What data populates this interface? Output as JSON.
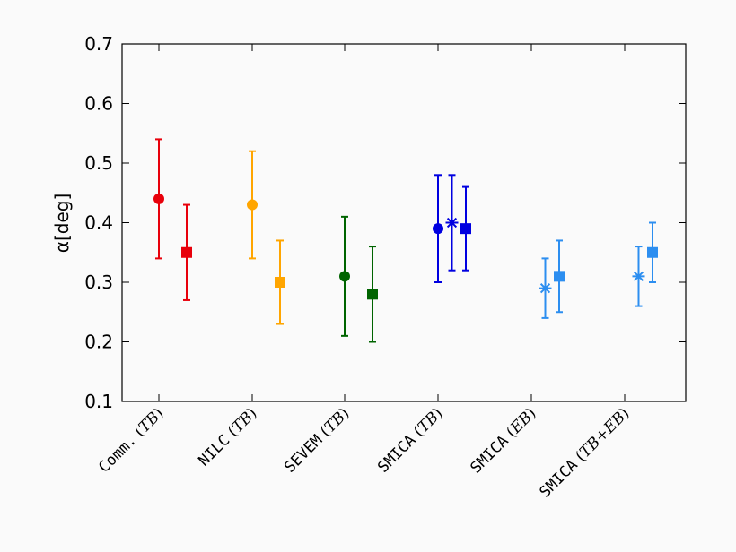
{
  "chart_data": {
    "type": "scatter",
    "ylabel": "α[deg]",
    "ylim": [
      0.1,
      0.7
    ],
    "yticks": [
      "0.1",
      "0.2",
      "0.3",
      "0.4",
      "0.5",
      "0.6",
      "0.7"
    ],
    "categories": [
      {
        "mono": "Comm.",
        "open": " (",
        "ital": "TB",
        "close": ")"
      },
      {
        "mono": "NILC",
        "open": " (",
        "ital": "TB",
        "close": ")"
      },
      {
        "mono": "SEVEM",
        "open": " (",
        "ital": "TB",
        "close": ")"
      },
      {
        "mono": "SMICA",
        "open": " (",
        "ital": "TB",
        "close": ")"
      },
      {
        "mono": "SMICA",
        "open": " (",
        "ital": "EB",
        "close": ")"
      },
      {
        "mono": "SMICA",
        "open": " (",
        "ital": "TB+EB",
        "close": ")"
      }
    ],
    "grid": false,
    "points": [
      {
        "category": 0,
        "offset": 0,
        "marker": "circle",
        "color": "#e8000b",
        "value": 0.44,
        "low": 0.34,
        "high": 0.54
      },
      {
        "category": 0,
        "offset": 1,
        "marker": "square",
        "color": "#e8000b",
        "value": 0.35,
        "low": 0.27,
        "high": 0.43
      },
      {
        "category": 1,
        "offset": 0,
        "marker": "circle",
        "color": "#ffa500",
        "value": 0.43,
        "low": 0.34,
        "high": 0.52
      },
      {
        "category": 1,
        "offset": 1,
        "marker": "square",
        "color": "#ffa500",
        "value": 0.3,
        "low": 0.23,
        "high": 0.37
      },
      {
        "category": 2,
        "offset": 0,
        "marker": "circle",
        "color": "#006400",
        "value": 0.31,
        "low": 0.21,
        "high": 0.41
      },
      {
        "category": 2,
        "offset": 1,
        "marker": "square",
        "color": "#006400",
        "value": 0.28,
        "low": 0.2,
        "high": 0.36
      },
      {
        "category": 3,
        "offset": 0,
        "marker": "circle",
        "color": "#0000e0",
        "value": 0.39,
        "low": 0.3,
        "high": 0.48
      },
      {
        "category": 3,
        "offset": 0.5,
        "marker": "star",
        "color": "#0000e0",
        "value": 0.4,
        "low": 0.32,
        "high": 0.48
      },
      {
        "category": 3,
        "offset": 1,
        "marker": "square",
        "color": "#0000e0",
        "value": 0.39,
        "low": 0.32,
        "high": 0.46
      },
      {
        "category": 4,
        "offset": 0.5,
        "marker": "star",
        "color": "#2c8ef0",
        "value": 0.29,
        "low": 0.24,
        "high": 0.34
      },
      {
        "category": 4,
        "offset": 1,
        "marker": "square",
        "color": "#2c8ef0",
        "value": 0.31,
        "low": 0.25,
        "high": 0.37
      },
      {
        "category": 5,
        "offset": 0.5,
        "marker": "star",
        "color": "#2c8ef0",
        "value": 0.31,
        "low": 0.26,
        "high": 0.36
      },
      {
        "category": 5,
        "offset": 1,
        "marker": "square",
        "color": "#2c8ef0",
        "value": 0.35,
        "low": 0.3,
        "high": 0.4
      }
    ]
  }
}
